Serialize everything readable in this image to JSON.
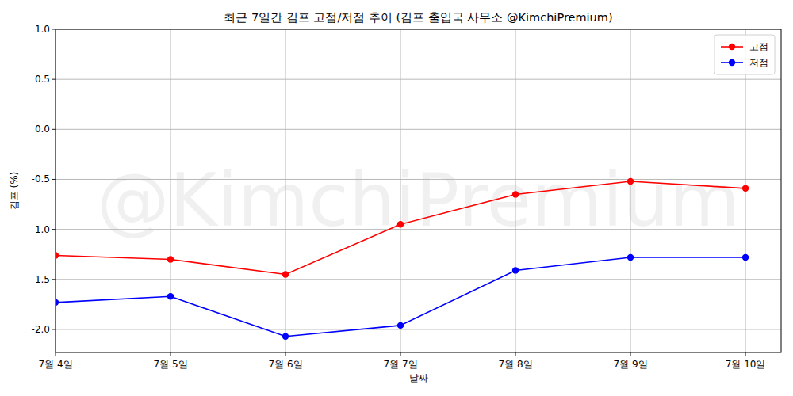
{
  "chart_data": {
    "type": "line",
    "title": "최근 7일간 김프 고점/저점 추이 (김프 출입국 사무소 @KimchiPremium)",
    "watermark": "@KimchiPremium",
    "x_label": "날짜",
    "y_label": "김프 (%)",
    "categories": [
      "7월 4일",
      "7월 5일",
      "7월 6일",
      "7월 7일",
      "7월 8일",
      "7월 9일",
      "7월 10일"
    ],
    "series": [
      {
        "name": "고점",
        "color": "#ff0000",
        "marker": "circle",
        "line_style": "solid",
        "values": [
          -1.26,
          -1.3,
          -1.45,
          -0.95,
          -0.65,
          -0.52,
          -0.59
        ]
      },
      {
        "name": "저점",
        "color": "#0000ff",
        "marker": "circle",
        "line_style": "solid",
        "values": [
          -1.73,
          -1.67,
          -2.07,
          -1.96,
          -1.41,
          -1.28,
          -1.28
        ]
      }
    ],
    "ylim": [
      -2.23,
      1.0
    ],
    "yticks": [
      {
        "value": -2.0,
        "label": "-2.0"
      },
      -1.5,
      {
        "value": -1.0,
        "label": "-1.0"
      },
      -0.5,
      {
        "value": 0.0,
        "label": "0.0"
      },
      0.5,
      {
        "value": 1.0,
        "label": "1.0"
      }
    ],
    "grid": true,
    "legend": "upper right"
  }
}
